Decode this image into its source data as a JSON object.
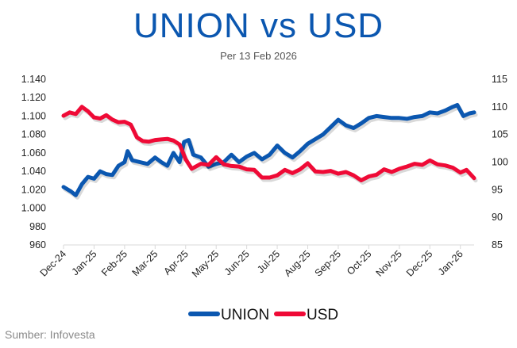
{
  "chart_data": {
    "type": "line",
    "title": "UNION vs USD",
    "subtitle": "Per 13 Feb 2026",
    "source": "Sumber: Infovesta",
    "x_tick_labels": [
      "Dec-24",
      "Jan-25",
      "Feb-25",
      "Mar-25",
      "Apr-25",
      "May-25",
      "Jun-25",
      "Jul-25",
      "Aug-25",
      "Sep-25",
      "Oct-25",
      "Nov-25",
      "Dec-25",
      "Jan-26"
    ],
    "x_unit": "months since Dec-24",
    "xlim": [
      0,
      13.45
    ],
    "y_left": {
      "ticks": [
        960,
        980,
        1000,
        1020,
        1040,
        1060,
        1080,
        1100,
        1120,
        1140
      ],
      "tick_labels": [
        "960",
        "980",
        "1.000",
        "1.020",
        "1.040",
        "1.060",
        "1.080",
        "1.100",
        "1.120",
        "1.140"
      ],
      "lim": [
        960,
        1140
      ]
    },
    "y_right": {
      "ticks": [
        85,
        90,
        95,
        100,
        105,
        110,
        115
      ],
      "tick_labels": [
        "85",
        "90",
        "95",
        "100",
        "105",
        "110",
        "115"
      ],
      "lim": [
        85,
        115
      ]
    },
    "legend": "bottom",
    "grid": false,
    "series": [
      {
        "name": "UNION",
        "axis": "left",
        "color": "#0B57B0",
        "x": [
          0,
          0.25,
          0.4,
          0.6,
          0.8,
          1,
          1.2,
          1.4,
          1.6,
          1.8,
          2,
          2.1,
          2.25,
          2.5,
          2.75,
          3,
          3.2,
          3.4,
          3.6,
          3.8,
          3.95,
          4.1,
          4.25,
          4.5,
          4.75,
          5,
          5.25,
          5.5,
          5.75,
          6,
          6.25,
          6.5,
          6.75,
          7,
          7.25,
          7.5,
          7.75,
          8,
          8.25,
          8.5,
          8.75,
          9,
          9.25,
          9.5,
          9.75,
          10,
          10.25,
          10.5,
          10.75,
          11,
          11.25,
          11.5,
          11.75,
          12,
          12.25,
          12.5,
          12.75,
          12.9,
          13.1,
          13.3,
          13.45
        ],
        "values": [
          1023,
          1018,
          1014,
          1026,
          1034,
          1032,
          1040,
          1037,
          1036,
          1046,
          1050,
          1062,
          1052,
          1050,
          1048,
          1055,
          1050,
          1046,
          1060,
          1050,
          1072,
          1074,
          1058,
          1055,
          1045,
          1048,
          1050,
          1058,
          1050,
          1056,
          1060,
          1053,
          1058,
          1068,
          1060,
          1055,
          1062,
          1070,
          1075,
          1080,
          1088,
          1096,
          1090,
          1087,
          1092,
          1098,
          1100,
          1099,
          1098,
          1098,
          1097,
          1099,
          1100,
          1104,
          1103,
          1106,
          1110,
          1112,
          1100,
          1103,
          1104
        ]
      },
      {
        "name": "USD",
        "axis": "right",
        "color": "#EF0A36",
        "x": [
          0,
          0.2,
          0.4,
          0.6,
          0.8,
          1,
          1.2,
          1.4,
          1.6,
          1.8,
          2,
          2.2,
          2.4,
          2.6,
          2.8,
          3,
          3.2,
          3.4,
          3.6,
          3.8,
          4,
          4.2,
          4.5,
          4.75,
          5,
          5.25,
          5.5,
          5.75,
          6,
          6.25,
          6.5,
          6.75,
          7,
          7.25,
          7.5,
          7.75,
          8,
          8.25,
          8.5,
          8.75,
          9,
          9.25,
          9.5,
          9.75,
          10,
          10.25,
          10.5,
          10.75,
          11,
          11.25,
          11.5,
          11.75,
          12,
          12.25,
          12.5,
          12.75,
          13,
          13.2,
          13.45
        ],
        "values": [
          108.4,
          109,
          108.7,
          110,
          109.2,
          108.1,
          107.9,
          108.5,
          107.7,
          107.2,
          107.3,
          106.8,
          104.5,
          103.8,
          103.7,
          104,
          104.1,
          104.2,
          103.9,
          103.2,
          100.5,
          98.8,
          99.7,
          99.5,
          100.9,
          99.6,
          99.3,
          99.2,
          98.7,
          98.6,
          97.2,
          97.2,
          97.6,
          98.6,
          98,
          98.7,
          99.8,
          98.3,
          98.2,
          98.4,
          97.9,
          98.2,
          97.6,
          96.7,
          97.4,
          97.7,
          98.7,
          98.2,
          98.8,
          99.2,
          99.7,
          99.5,
          100.3,
          99.6,
          99.4,
          99.0,
          98.1,
          98.6,
          97.1
        ]
      }
    ]
  }
}
